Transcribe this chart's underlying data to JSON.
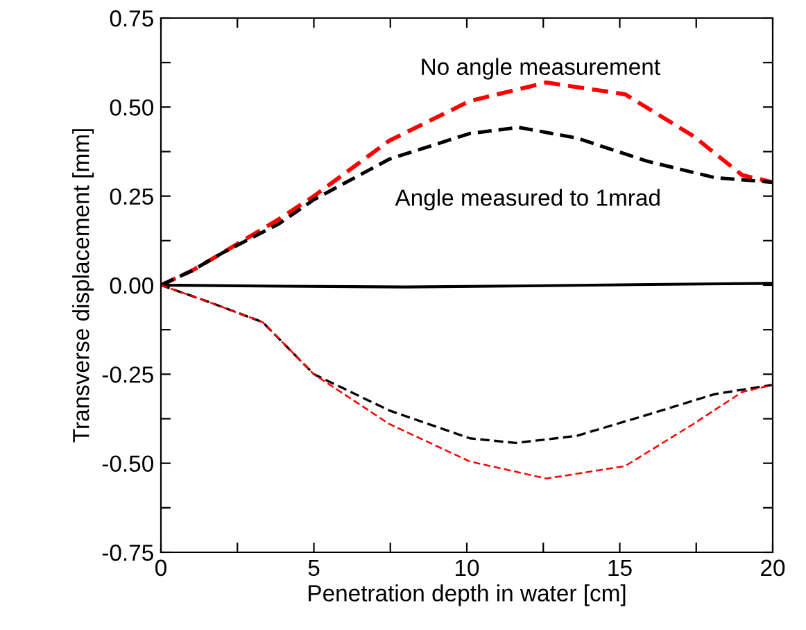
{
  "chart_data": {
    "type": "line",
    "xlabel": "Penetration depth in water [cm]",
    "ylabel": "Transverse displacement [mm]",
    "series": [
      {
        "color": "#ff0000",
        "line_style": "dashed",
        "x": [
          0,
          1,
          2,
          3.85,
          5,
          7.47,
          10.1,
          12.6,
          15.17,
          17.4,
          19.0,
          20
        ],
        "values": [
          0,
          0.04,
          0.09,
          0.185,
          0.25,
          0.406,
          0.517,
          0.569,
          0.536,
          0.419,
          0.309,
          0.289
        ]
      },
      {
        "color": "#000000",
        "line_style": "dashed",
        "x": [
          0,
          1,
          2,
          3.85,
          5,
          7.47,
          10.1,
          11.7,
          13.6,
          15.9,
          18.1,
          20
        ],
        "values": [
          0,
          0.04,
          0.09,
          0.172,
          0.24,
          0.354,
          0.426,
          0.443,
          0.413,
          0.348,
          0.302,
          0.289
        ]
      },
      {
        "color": "#000000",
        "line_style": "solid",
        "x": [
          0,
          4,
          8,
          12,
          16,
          20
        ],
        "values": [
          0,
          -0.003,
          -0.005,
          -0.002,
          0.002,
          0.005
        ]
      },
      {
        "color": "#000000",
        "line_style": "dashed",
        "x": [
          0,
          1.5,
          3.33,
          5,
          7.47,
          10.1,
          11.6,
          13.6,
          15.9,
          18.1,
          20
        ],
        "values": [
          0,
          -0.045,
          -0.104,
          -0.25,
          -0.352,
          -0.43,
          -0.443,
          -0.423,
          -0.364,
          -0.306,
          -0.28
        ]
      },
      {
        "color": "#ff0000",
        "line_style": "dashed",
        "x": [
          0,
          1.5,
          3.33,
          5,
          7.47,
          10.1,
          12.6,
          15.17,
          17.4,
          19.0,
          20
        ],
        "values": [
          0,
          -0.045,
          -0.104,
          -0.25,
          -0.39,
          -0.495,
          -0.543,
          -0.508,
          -0.39,
          -0.3,
          -0.28
        ]
      }
    ],
    "annotations": [
      "No angle measurement",
      "Angle measured to 1mrad"
    ],
    "xlim": [
      0,
      20
    ],
    "ylim": [
      -0.75,
      0.75
    ],
    "xticks": [
      0,
      {
        "value": 2.5,
        "label": null
      },
      5,
      {
        "value": 7.5,
        "label": null
      },
      10,
      {
        "value": 12.5,
        "label": null
      },
      15,
      {
        "value": 17.5,
        "label": null
      },
      20
    ],
    "yticks": [
      {
        "value": -0.75,
        "label": "-0.75"
      },
      {
        "value": -0.625,
        "label": null
      },
      {
        "value": -0.5,
        "label": "-0.50"
      },
      {
        "value": -0.375,
        "label": null
      },
      {
        "value": -0.25,
        "label": "-0.25"
      },
      {
        "value": -0.125,
        "label": null
      },
      {
        "value": 0,
        "label": "0.00"
      },
      {
        "value": 0.125,
        "label": null
      },
      {
        "value": 0.25,
        "label": "0.25"
      },
      {
        "value": 0.375,
        "label": null
      },
      {
        "value": 0.5,
        "label": "0.50"
      },
      {
        "value": 0.625,
        "label": null
      },
      {
        "value": 0.75,
        "label": "0.75"
      }
    ],
    "grid": false,
    "legend": false,
    "marker": "none"
  }
}
